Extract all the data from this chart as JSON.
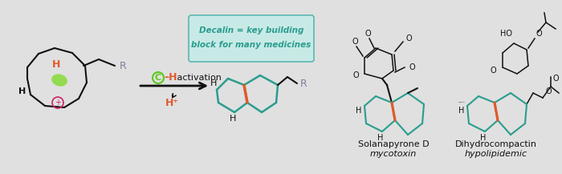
{
  "bg_color": "#e0e0e0",
  "teal": "#2a9d8f",
  "orange": "#e05a2b",
  "green_c": "#5bc81a",
  "purple": "#8878a0",
  "black": "#111111",
  "box_facecolor": "#c8eae6",
  "box_edgecolor": "#5ab8b0",
  "box_line1": "Decalin = key building",
  "box_line2": "block for many medicines",
  "label_sol": "Solanapyrone D",
  "label_sol_sub": "mycotoxin",
  "label_dih": "Dihydrocompactin",
  "label_dih_sub": "hypolipidemic",
  "figsize": [
    7.0,
    2.17
  ],
  "dpi": 100
}
